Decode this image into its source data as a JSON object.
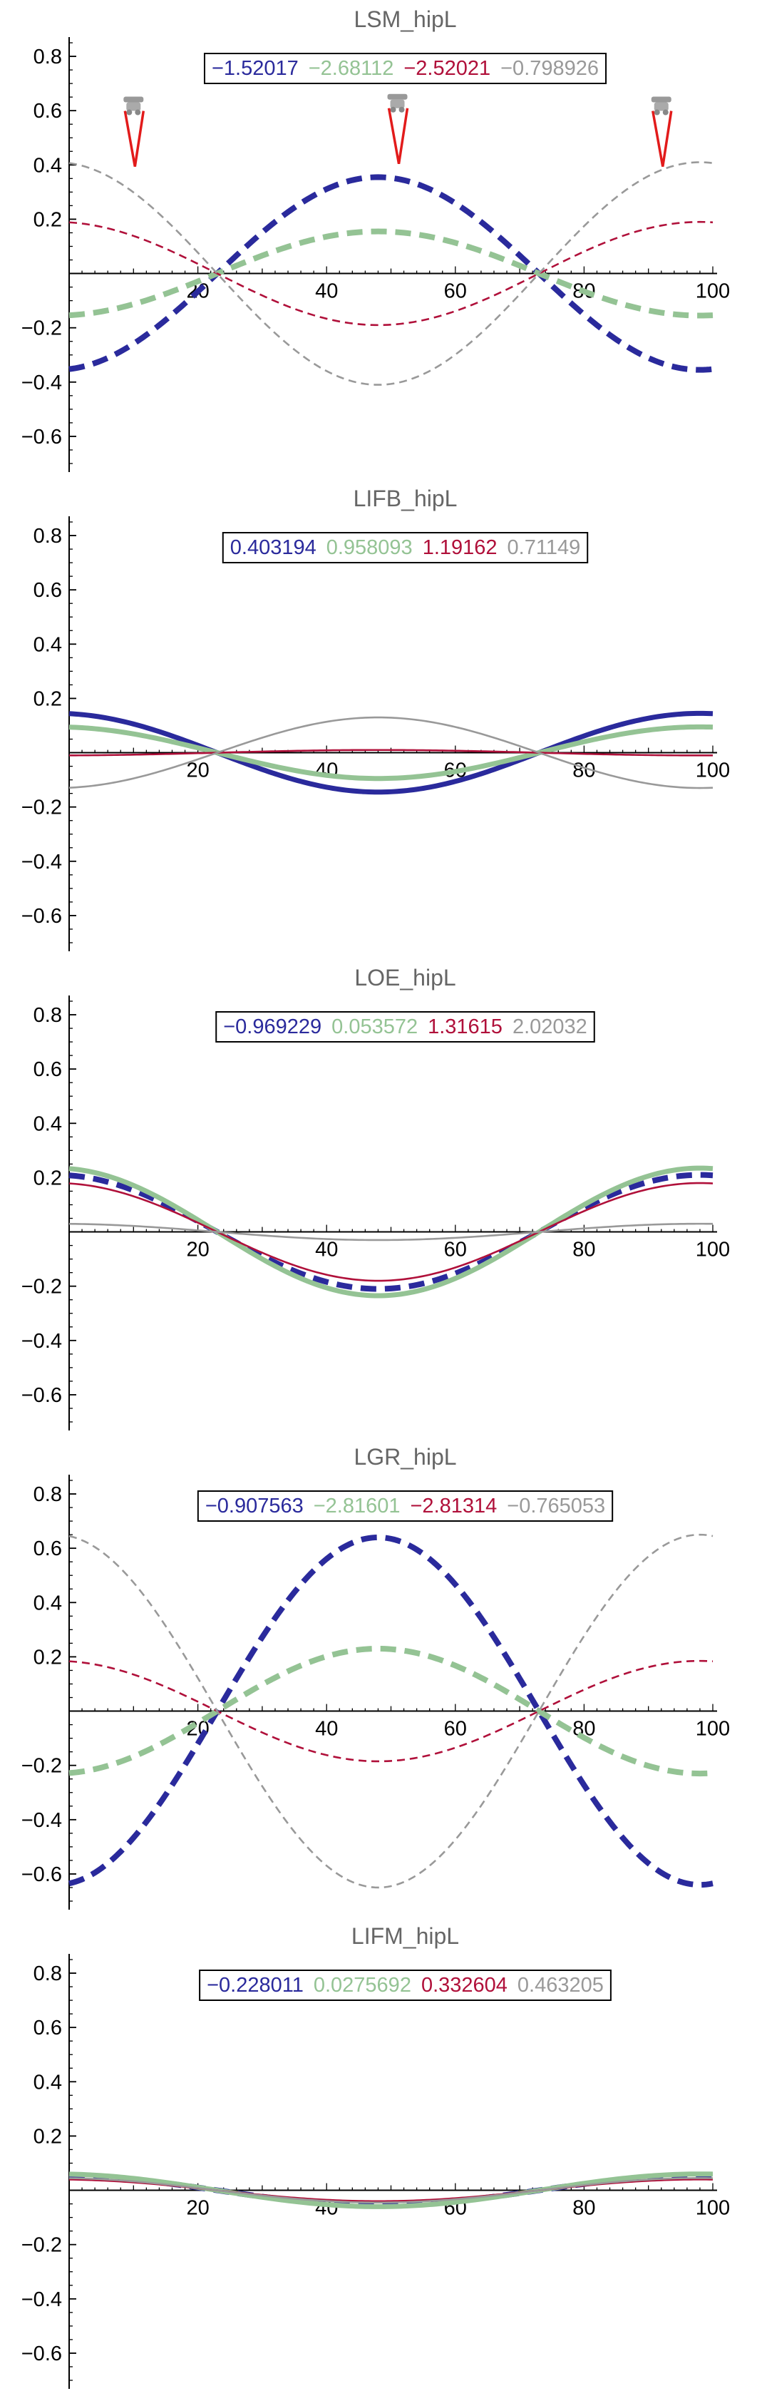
{
  "colors": {
    "s0": "#2a2a9c",
    "s1": "#94c394",
    "s2": "#b0103a",
    "s3": "#999999"
  },
  "chart_data": [
    {
      "type": "line",
      "title": "LSM_hipL",
      "xlim": [
        0,
        100
      ],
      "ylim": [
        -0.7,
        0.85
      ],
      "xticks": [
        20,
        40,
        60,
        80,
        100
      ],
      "yticks": [
        -0.6,
        -0.4,
        -0.2,
        0.2,
        0.4,
        0.6,
        0.8
      ],
      "xtick_labels": [
        "20",
        "40",
        "60",
        "80",
        "100"
      ],
      "ytick_labels": [
        "−0.6",
        "−0.4",
        "−0.2",
        "0.2",
        "0.4",
        "0.6",
        "0.8"
      ],
      "legend": [
        "−1.52017",
        "−2.68112",
        "−2.52021",
        "−0.798926"
      ],
      "series": [
        {
          "amplitude": -0.355,
          "style": "thick-dashed",
          "color_key": "s0"
        },
        {
          "amplitude": -0.155,
          "style": "thick-dashed",
          "color_key": "s1"
        },
        {
          "amplitude": 0.19,
          "style": "thin-dashed",
          "color_key": "s2"
        },
        {
          "amplitude": 0.41,
          "style": "thin-dashed",
          "color_key": "s3"
        }
      ],
      "icons": [
        {
          "x": 10,
          "y": 0.62
        },
        {
          "x": 51,
          "y": 0.63
        },
        {
          "x": 92,
          "y": 0.62
        }
      ]
    },
    {
      "type": "line",
      "title": "LIFB_hipL",
      "xlim": [
        0,
        100
      ],
      "ylim": [
        -0.7,
        0.85
      ],
      "xticks": [
        20,
        40,
        60,
        80,
        100
      ],
      "yticks": [
        -0.6,
        -0.4,
        -0.2,
        0.2,
        0.4,
        0.6,
        0.8
      ],
      "xtick_labels": [
        "20",
        "40",
        "60",
        "80",
        "100"
      ],
      "ytick_labels": [
        "−0.6",
        "−0.4",
        "−0.2",
        "0.2",
        "0.4",
        "0.6",
        "0.8"
      ],
      "legend": [
        "0.403194",
        "0.958093",
        "1.19162",
        "0.71149"
      ],
      "series": [
        {
          "amplitude": 0.145,
          "style": "thick",
          "color_key": "s0"
        },
        {
          "amplitude": 0.095,
          "style": "thick",
          "color_key": "s1"
        },
        {
          "amplitude": -0.01,
          "style": "thin",
          "color_key": "s2"
        },
        {
          "amplitude": -0.13,
          "style": "thin",
          "color_key": "s3"
        }
      ],
      "icons": []
    },
    {
      "type": "line",
      "title": "LOE_hipL",
      "xlim": [
        0,
        100
      ],
      "ylim": [
        -0.7,
        0.85
      ],
      "xticks": [
        20,
        40,
        60,
        80,
        100
      ],
      "yticks": [
        -0.6,
        -0.4,
        -0.2,
        0.2,
        0.4,
        0.6,
        0.8
      ],
      "xtick_labels": [
        "20",
        "40",
        "60",
        "80",
        "100"
      ],
      "ytick_labels": [
        "−0.6",
        "−0.4",
        "−0.2",
        "0.2",
        "0.4",
        "0.6",
        "0.8"
      ],
      "legend": [
        "−0.969229",
        "0.053572",
        "1.31615",
        "2.02032"
      ],
      "series": [
        {
          "amplitude": 0.21,
          "style": "thick-dashed",
          "color_key": "s0"
        },
        {
          "amplitude": 0.235,
          "style": "thick",
          "color_key": "s1"
        },
        {
          "amplitude": 0.18,
          "style": "thin",
          "color_key": "s2"
        },
        {
          "amplitude": 0.03,
          "style": "thin",
          "color_key": "s3"
        }
      ],
      "icons": []
    },
    {
      "type": "line",
      "title": "LGR_hipL",
      "xlim": [
        0,
        100
      ],
      "ylim": [
        -0.7,
        0.85
      ],
      "xticks": [
        20,
        40,
        60,
        80,
        100
      ],
      "yticks": [
        -0.6,
        -0.4,
        -0.2,
        0.2,
        0.4,
        0.6,
        0.8
      ],
      "xtick_labels": [
        "20",
        "40",
        "60",
        "80",
        "100"
      ],
      "ytick_labels": [
        "−0.6",
        "−0.4",
        "−0.2",
        "0.2",
        "0.4",
        "0.6",
        "0.8"
      ],
      "legend": [
        "−0.907563",
        "−2.81601",
        "−2.81314",
        "−0.765053"
      ],
      "series": [
        {
          "amplitude": -0.64,
          "style": "thick-dashed",
          "color_key": "s0"
        },
        {
          "amplitude": -0.23,
          "style": "thick-dashed",
          "color_key": "s1"
        },
        {
          "amplitude": 0.185,
          "style": "thin-dashed",
          "color_key": "s2"
        },
        {
          "amplitude": 0.65,
          "style": "thin-dashed",
          "color_key": "s3"
        }
      ],
      "icons": []
    },
    {
      "type": "line",
      "title": "LIFM_hipL",
      "xlim": [
        0,
        100
      ],
      "ylim": [
        -0.7,
        0.85
      ],
      "xticks": [
        20,
        40,
        60,
        80,
        100
      ],
      "yticks": [
        -0.6,
        -0.4,
        -0.2,
        0.2,
        0.4,
        0.6,
        0.8
      ],
      "xtick_labels": [
        "20",
        "40",
        "60",
        "80",
        "100"
      ],
      "ytick_labels": [
        "−0.6",
        "−0.4",
        "−0.2",
        "0.2",
        "0.4",
        "0.6",
        "0.8"
      ],
      "legend": [
        "−0.228011",
        "0.0275692",
        "0.332604",
        "0.463205"
      ],
      "series": [
        {
          "amplitude": 0.055,
          "style": "thick-dashed",
          "color_key": "s0"
        },
        {
          "amplitude": 0.06,
          "style": "thick",
          "color_key": "s1"
        },
        {
          "amplitude": 0.04,
          "style": "thin",
          "color_key": "s2"
        },
        {
          "amplitude": 0.045,
          "style": "thin",
          "color_key": "s3"
        }
      ],
      "icons": []
    }
  ]
}
